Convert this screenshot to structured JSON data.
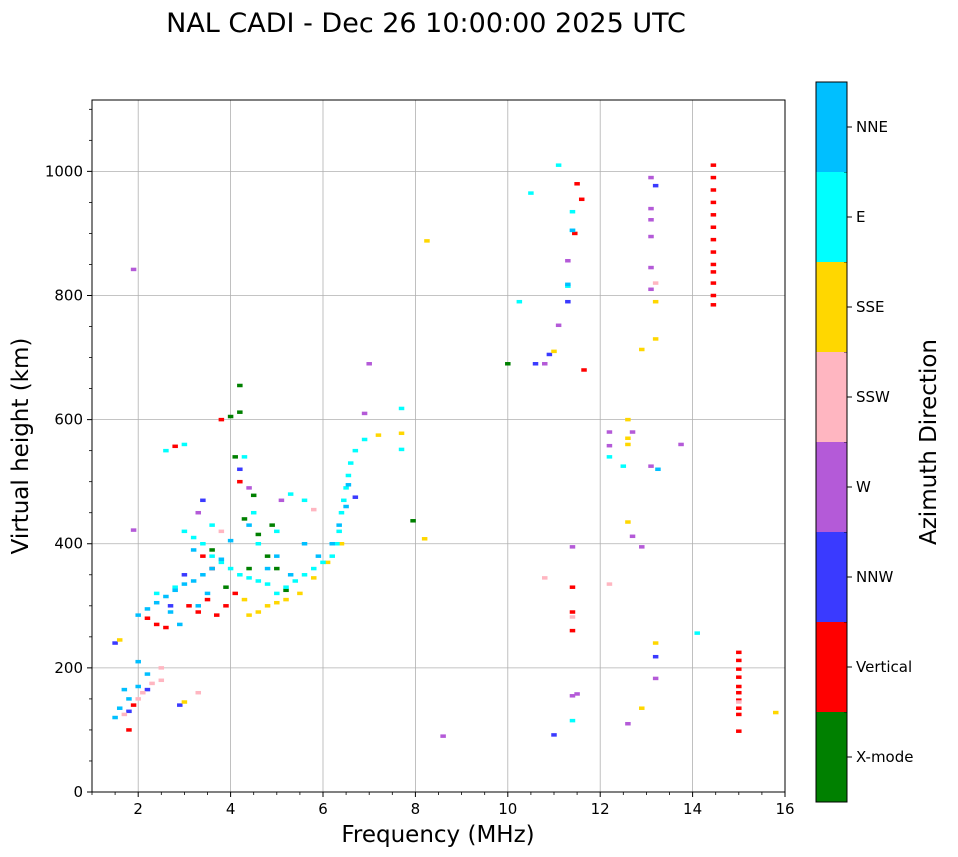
{
  "chart_data": {
    "type": "scatter",
    "title": "NAL CADI - Dec 26 10:00:00 2025 UTC",
    "xlabel": "Frequency (MHz)",
    "ylabel": "Virtual height (km)",
    "xlim": [
      1,
      16
    ],
    "ylim": [
      0,
      1115
    ],
    "xticks": [
      2,
      4,
      6,
      8,
      10,
      12,
      14,
      16
    ],
    "yticks": [
      0,
      200,
      400,
      600,
      800,
      1000
    ],
    "grid": true,
    "colorbar": {
      "label": "Azimuth Direction",
      "categories": [
        {
          "name": "X-mode",
          "color": "#008000"
        },
        {
          "name": "Vertical",
          "color": "#ff0000"
        },
        {
          "name": "NNW",
          "color": "#3a3aff"
        },
        {
          "name": "W",
          "color": "#b45ad8"
        },
        {
          "name": "SSW",
          "color": "#ffb6c1"
        },
        {
          "name": "SSE",
          "color": "#ffd700"
        },
        {
          "name": "E",
          "color": "#00ffff"
        },
        {
          "name": "NNE",
          "color": "#00bfff"
        }
      ]
    },
    "series": [
      {
        "name": "X-mode",
        "points": [
          [
            4.0,
            605
          ],
          [
            4.2,
            655
          ],
          [
            4.1,
            540
          ],
          [
            4.5,
            478
          ],
          [
            4.3,
            440
          ],
          [
            4.6,
            415
          ],
          [
            4.8,
            380
          ],
          [
            5.0,
            360
          ],
          [
            3.6,
            390
          ],
          [
            4.4,
            360
          ],
          [
            5.2,
            325
          ],
          [
            7.95,
            437
          ],
          [
            10.0,
            690
          ],
          [
            4.2,
            612
          ],
          [
            3.9,
            330
          ],
          [
            4.9,
            430
          ]
        ]
      },
      {
        "name": "Vertical",
        "points": [
          [
            14.45,
            1010
          ],
          [
            14.45,
            990
          ],
          [
            14.45,
            970
          ],
          [
            14.45,
            950
          ],
          [
            14.45,
            930
          ],
          [
            14.45,
            910
          ],
          [
            14.45,
            890
          ],
          [
            14.45,
            870
          ],
          [
            14.45,
            850
          ],
          [
            14.45,
            838
          ],
          [
            14.45,
            820
          ],
          [
            14.45,
            800
          ],
          [
            14.45,
            785
          ],
          [
            15.0,
            225
          ],
          [
            15.0,
            212
          ],
          [
            15.0,
            198
          ],
          [
            15.0,
            185
          ],
          [
            15.0,
            170
          ],
          [
            15.0,
            160
          ],
          [
            15.0,
            148
          ],
          [
            15.0,
            135
          ],
          [
            15.0,
            125
          ],
          [
            15.0,
            98
          ],
          [
            11.5,
            980
          ],
          [
            11.6,
            955
          ],
          [
            11.45,
            900
          ],
          [
            11.4,
            330
          ],
          [
            11.4,
            290
          ],
          [
            11.4,
            260
          ],
          [
            11.65,
            680
          ],
          [
            3.8,
            600
          ],
          [
            2.8,
            557
          ],
          [
            2.4,
            270
          ],
          [
            2.6,
            265
          ],
          [
            3.1,
            300
          ],
          [
            3.3,
            290
          ],
          [
            3.5,
            310
          ],
          [
            3.7,
            285
          ],
          [
            3.9,
            300
          ],
          [
            4.1,
            320
          ],
          [
            2.2,
            280
          ],
          [
            1.8,
            100
          ],
          [
            1.9,
            140
          ],
          [
            4.2,
            500
          ],
          [
            3.6,
            360
          ],
          [
            3.4,
            380
          ]
        ]
      },
      {
        "name": "NNW",
        "points": [
          [
            1.5,
            240
          ],
          [
            1.8,
            130
          ],
          [
            2.2,
            165
          ],
          [
            2.9,
            140
          ],
          [
            13.2,
            977
          ],
          [
            13.2,
            218
          ],
          [
            11.3,
            790
          ],
          [
            10.9,
            705
          ],
          [
            10.6,
            690
          ],
          [
            11.0,
            92
          ],
          [
            3.4,
            470
          ],
          [
            4.2,
            520
          ],
          [
            6.7,
            475
          ],
          [
            3.0,
            350
          ],
          [
            2.7,
            300
          ]
        ]
      },
      {
        "name": "W",
        "points": [
          [
            1.9,
            842
          ],
          [
            1.9,
            422
          ],
          [
            13.1,
            990
          ],
          [
            13.1,
            940
          ],
          [
            13.1,
            922
          ],
          [
            13.1,
            895
          ],
          [
            13.1,
            845
          ],
          [
            13.1,
            810
          ],
          [
            13.1,
            525
          ],
          [
            12.7,
            580
          ],
          [
            12.7,
            412
          ],
          [
            12.9,
            395
          ],
          [
            12.6,
            110
          ],
          [
            13.2,
            183
          ],
          [
            11.1,
            752
          ],
          [
            11.5,
            158
          ],
          [
            11.4,
            155
          ],
          [
            11.4,
            395
          ],
          [
            11.3,
            856
          ],
          [
            10.8,
            690
          ],
          [
            8.6,
            90
          ],
          [
            12.2,
            580
          ],
          [
            12.2,
            558
          ],
          [
            13.75,
            560
          ],
          [
            7.0,
            690
          ],
          [
            6.9,
            610
          ],
          [
            3.3,
            450
          ],
          [
            4.4,
            490
          ],
          [
            5.1,
            470
          ]
        ]
      },
      {
        "name": "SSW",
        "points": [
          [
            2.1,
            160
          ],
          [
            2.3,
            175
          ],
          [
            2.5,
            180
          ],
          [
            2.0,
            150
          ],
          [
            1.7,
            125
          ],
          [
            13.2,
            820
          ],
          [
            12.2,
            335
          ],
          [
            10.8,
            345
          ],
          [
            11.4,
            282
          ],
          [
            15.0,
            145
          ],
          [
            3.3,
            160
          ],
          [
            2.5,
            200
          ],
          [
            3.8,
            420
          ],
          [
            5.8,
            455
          ]
        ]
      },
      {
        "name": "SSE",
        "points": [
          [
            8.25,
            888
          ],
          [
            13.2,
            790
          ],
          [
            13.2,
            730
          ],
          [
            12.9,
            713
          ],
          [
            12.6,
            600
          ],
          [
            12.6,
            570
          ],
          [
            12.6,
            560
          ],
          [
            12.6,
            435
          ],
          [
            13.2,
            240
          ],
          [
            12.9,
            135
          ],
          [
            15.8,
            128
          ],
          [
            8.2,
            408
          ],
          [
            11.0,
            710
          ],
          [
            4.6,
            290
          ],
          [
            4.8,
            300
          ],
          [
            5.0,
            305
          ],
          [
            5.2,
            310
          ],
          [
            5.5,
            320
          ],
          [
            5.8,
            345
          ],
          [
            6.1,
            370
          ],
          [
            6.4,
            400
          ],
          [
            7.7,
            578
          ],
          [
            7.2,
            575
          ],
          [
            1.6,
            245
          ],
          [
            3.0,
            145
          ],
          [
            4.3,
            310
          ],
          [
            4.4,
            285
          ]
        ]
      },
      {
        "name": "E",
        "points": [
          [
            11.1,
            1010
          ],
          [
            11.4,
            935
          ],
          [
            11.4,
            905
          ],
          [
            10.5,
            965
          ],
          [
            10.25,
            790
          ],
          [
            11.3,
            815
          ],
          [
            12.5,
            525
          ],
          [
            12.2,
            540
          ],
          [
            14.1,
            256
          ],
          [
            11.4,
            115
          ],
          [
            7.7,
            618
          ],
          [
            7.7,
            552
          ],
          [
            6.9,
            568
          ],
          [
            6.7,
            550
          ],
          [
            6.6,
            530
          ],
          [
            6.55,
            510
          ],
          [
            6.5,
            490
          ],
          [
            6.45,
            470
          ],
          [
            6.4,
            450
          ],
          [
            6.35,
            420
          ],
          [
            6.3,
            400
          ],
          [
            6.2,
            380
          ],
          [
            6.0,
            370
          ],
          [
            5.8,
            360
          ],
          [
            5.6,
            350
          ],
          [
            5.4,
            340
          ],
          [
            5.2,
            330
          ],
          [
            5.0,
            320
          ],
          [
            4.8,
            335
          ],
          [
            4.6,
            340
          ],
          [
            4.4,
            345
          ],
          [
            4.2,
            350
          ],
          [
            4.0,
            360
          ],
          [
            3.8,
            370
          ],
          [
            3.6,
            380
          ],
          [
            3.4,
            400
          ],
          [
            3.2,
            410
          ],
          [
            3.0,
            420
          ],
          [
            4.5,
            450
          ],
          [
            5.3,
            480
          ],
          [
            3.0,
            560
          ],
          [
            2.6,
            550
          ],
          [
            4.3,
            540
          ],
          [
            5.0,
            420
          ],
          [
            5.6,
            470
          ],
          [
            2.4,
            320
          ],
          [
            2.8,
            330
          ],
          [
            3.6,
            430
          ],
          [
            4.6,
            400
          ]
        ]
      },
      {
        "name": "NNE",
        "points": [
          [
            11.3,
            818
          ],
          [
            11.4,
            905
          ],
          [
            13.25,
            520
          ],
          [
            2.0,
            285
          ],
          [
            2.2,
            295
          ],
          [
            2.4,
            305
          ],
          [
            2.6,
            315
          ],
          [
            2.8,
            325
          ],
          [
            3.0,
            335
          ],
          [
            3.2,
            340
          ],
          [
            3.4,
            350
          ],
          [
            3.6,
            360
          ],
          [
            3.8,
            375
          ],
          [
            1.5,
            120
          ],
          [
            1.6,
            135
          ],
          [
            1.8,
            150
          ],
          [
            2.0,
            170
          ],
          [
            2.2,
            190
          ],
          [
            2.0,
            210
          ],
          [
            1.7,
            165
          ],
          [
            6.55,
            495
          ],
          [
            6.5,
            460
          ],
          [
            6.35,
            430
          ],
          [
            6.2,
            400
          ],
          [
            5.9,
            380
          ],
          [
            3.3,
            300
          ],
          [
            2.9,
            270
          ],
          [
            3.2,
            390
          ],
          [
            4.0,
            405
          ],
          [
            4.4,
            430
          ],
          [
            5.6,
            400
          ],
          [
            5.0,
            380
          ],
          [
            3.5,
            320
          ],
          [
            2.7,
            290
          ],
          [
            4.8,
            360
          ],
          [
            5.3,
            350
          ]
        ]
      }
    ]
  }
}
